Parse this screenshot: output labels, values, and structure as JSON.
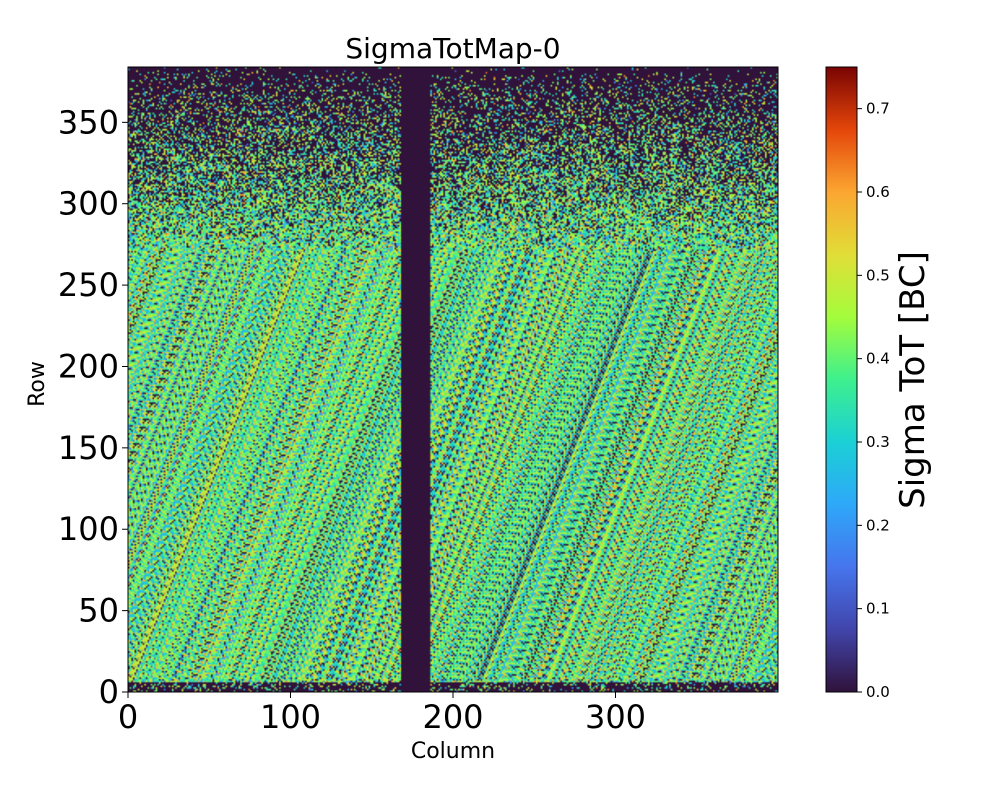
{
  "chart_data": {
    "type": "heatmap",
    "title": "SigmaTotMap-0",
    "xlabel": "Column",
    "ylabel": "Row",
    "xlim": [
      0,
      400
    ],
    "ylim": [
      0,
      384
    ],
    "x_ticks": [
      0,
      100,
      200,
      300
    ],
    "y_ticks": [
      0,
      50,
      100,
      150,
      200,
      250,
      300,
      350
    ],
    "colorbar": {
      "label": "Sigma ToT [BC]",
      "range": [
        0.0,
        0.75
      ],
      "ticks": [
        "0.0",
        "0.1",
        "0.2",
        "0.3",
        "0.4",
        "0.5",
        "0.6",
        "0.7"
      ],
      "colormap": "turbo"
    },
    "features": {
      "dead_column_band": [
        168,
        185
      ],
      "typical_value": 0.4,
      "dark_top_from_row": 270,
      "dark_bottom_rows": 6,
      "zero_fraction_bulk": 0.12
    }
  }
}
